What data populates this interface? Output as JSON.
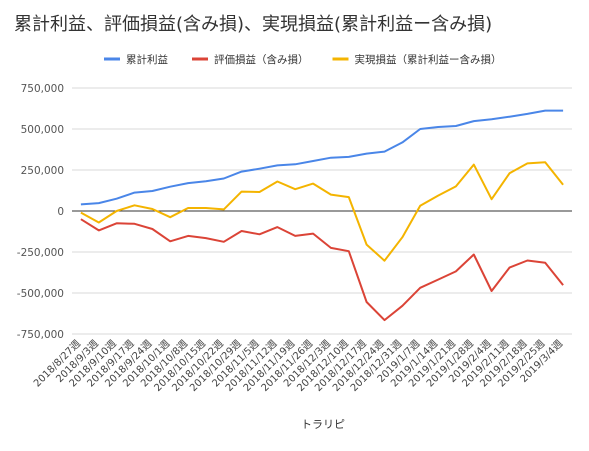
{
  "chart_data": {
    "type": "line",
    "title": "累計利益、評価損益(含み損)、実現損益(累計利益ー含み損)",
    "xlabel": "トラリピ",
    "ylabel": "",
    "ylim": [
      -750000,
      750000
    ],
    "yticks": [
      750000,
      500000,
      250000,
      0,
      -250000,
      -500000,
      -750000
    ],
    "ytick_labels": [
      "750,000",
      "500,000",
      "250,000",
      "0",
      "-250,000",
      "-500,000",
      "-750,000"
    ],
    "grid": true,
    "legend_position": "top",
    "categories": [
      "2018/8/27週",
      "2018/9/3週",
      "2018/9/10週",
      "2018/9/17週",
      "2018/9/24週",
      "2018/10/1週",
      "2018/10/8週",
      "2018/10/15週",
      "2018/10/22週",
      "2018/10/29週",
      "2018/11/5週",
      "2018/11/12週",
      "2018/11/19週",
      "2018/11/26週",
      "2018/12/3週",
      "2018/12/10週",
      "2018/12/17週",
      "2018/12/24週",
      "2018/12/31週",
      "2019/1/7週",
      "2019/1/14週",
      "2019/1/21週",
      "2019/1/28週",
      "2019/2/4週",
      "2019/2/11週",
      "2019/2/18週",
      "2019/2/25週",
      "2019/3/4週"
    ],
    "tick_labels": [
      "2018/8/27週",
      "2018/9/3週",
      "2018/9/10週",
      "2018/9/17週",
      "2018/9/24週",
      "2018/10/1週",
      "2018/10/8週",
      "2018/10/15週",
      "2018/10/22週",
      "2018/10/29週",
      "2018/11/5週",
      "2018/11/12週",
      "2018/11/19週",
      "2018/11/26週",
      "2018/12/3週",
      "2018/12/10週",
      "2018/12/17週",
      "2018/12/24週",
      "2018/12/31週",
      "2019/1/7週",
      "2019/1/14週",
      "2019/1/21週",
      "2019/1/28週",
      "2019/2/4週",
      "2019/2/11週",
      "2019/2/18週",
      "2019/2/25週",
      "2019/3/4週"
    ],
    "series": [
      {
        "name": "累計利益",
        "color": "#4a86e8",
        "values": [
          40000,
          48000,
          75000,
          112000,
          122000,
          148000,
          170000,
          182000,
          198000,
          240000,
          258000,
          278000,
          285000,
          305000,
          325000,
          330000,
          350000,
          362000,
          418000,
          500000,
          512000,
          518000,
          548000,
          560000,
          575000,
          592000,
          612000,
          612000
        ]
      },
      {
        "name": "評価損益（含み損）",
        "color": "#db4437",
        "values": [
          -50000,
          -118000,
          -75000,
          -78000,
          -110000,
          -185000,
          -152000,
          -165000,
          -188000,
          -122000,
          -142000,
          -98000,
          -152000,
          -138000,
          -225000,
          -245000,
          -555000,
          -665000,
          -578000,
          -468000,
          -418000,
          -368000,
          -265000,
          -488000,
          -345000,
          -302000,
          -315000,
          -452000
        ]
      },
      {
        "name": "実現損益（累計利益ー含み損）",
        "color": "#f4b400",
        "values": [
          -10000,
          -70000,
          0,
          35000,
          12000,
          -38000,
          18000,
          18000,
          10000,
          118000,
          116000,
          180000,
          133000,
          167000,
          100000,
          85000,
          -205000,
          -303000,
          -160000,
          32000,
          94000,
          150000,
          283000,
          72000,
          230000,
          290000,
          297000,
          160000
        ]
      }
    ]
  }
}
